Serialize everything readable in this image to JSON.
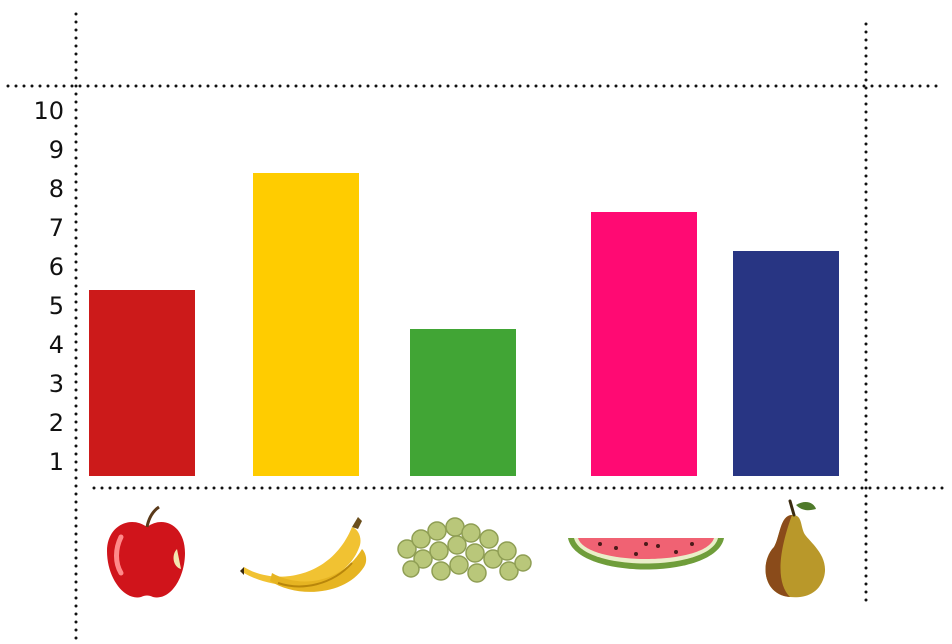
{
  "chart_data": {
    "type": "bar",
    "title": "",
    "xlabel": "",
    "ylabel": "",
    "ylim": [
      0,
      10
    ],
    "yticks": [
      "1",
      "2",
      "3",
      "4",
      "5",
      "6",
      "7",
      "8",
      "9",
      "10"
    ],
    "grid": false,
    "legend": "none",
    "categories": [
      "apple",
      "banana",
      "grapes",
      "watermelon",
      "pear"
    ],
    "category_icons": [
      "apple-icon",
      "banana-icon",
      "grapes-icon",
      "watermelon-icon",
      "pear-icon"
    ],
    "values": [
      5,
      8,
      4,
      7,
      6
    ],
    "colors": [
      "#cc1a1a",
      "#ffcc00",
      "#41a535",
      "#ff0a73",
      "#283583"
    ]
  }
}
